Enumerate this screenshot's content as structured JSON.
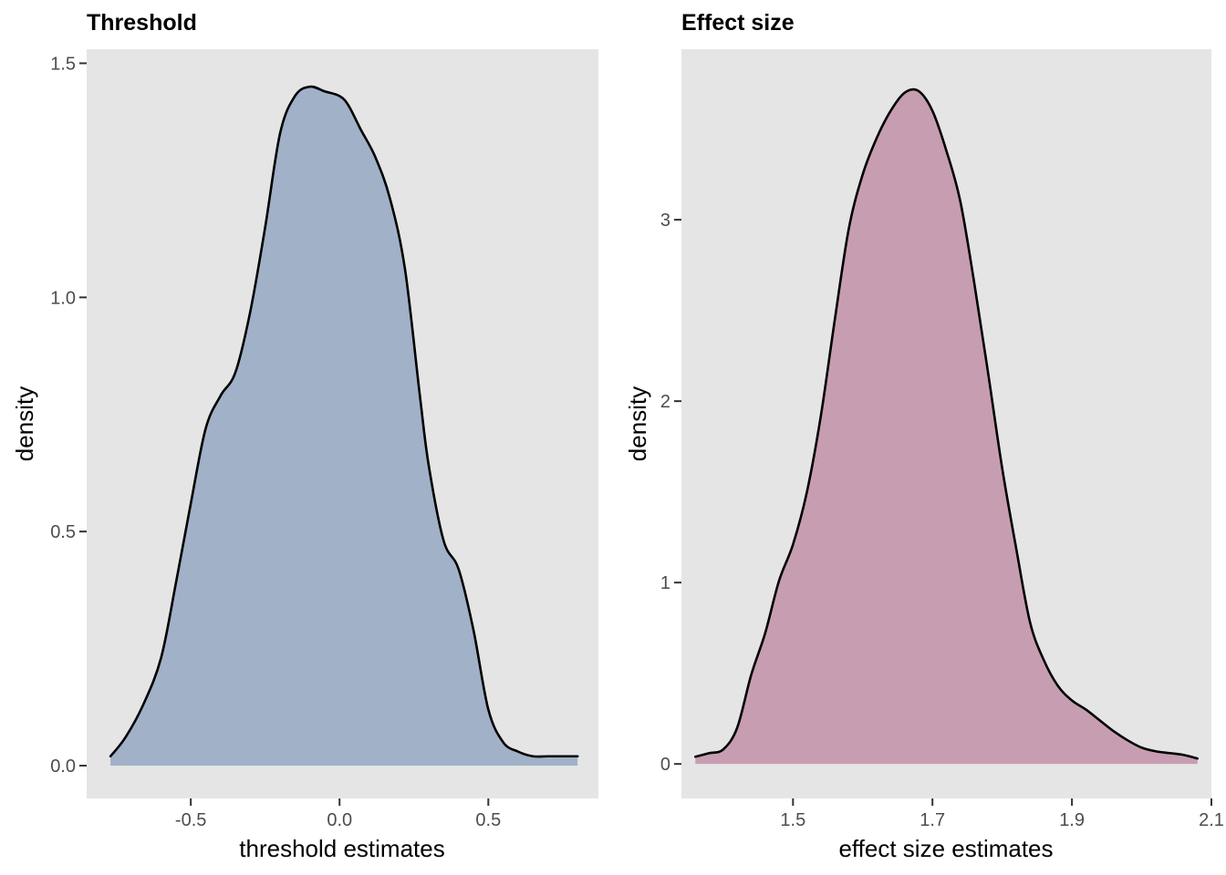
{
  "chart_data": [
    {
      "type": "area",
      "title": "Threshold",
      "xlabel": "threshold estimates",
      "ylabel": "density",
      "xlim": [
        -0.85,
        0.87
      ],
      "ylim": [
        -0.07,
        1.53
      ],
      "xticks": [
        -0.5,
        0.0,
        0.5
      ],
      "xtick_labels": [
        "-0.5",
        "0.0",
        "0.5"
      ],
      "yticks": [
        0.0,
        0.5,
        1.0,
        1.5
      ],
      "ytick_labels": [
        "0.0",
        "0.5",
        "1.0",
        "1.5"
      ],
      "grid": false,
      "fill_color": "#a0b1c8",
      "line_color": "#000000",
      "panel_color": "#e5e5e5",
      "x": [
        -0.77,
        -0.72,
        -0.66,
        -0.6,
        -0.55,
        -0.5,
        -0.45,
        -0.4,
        -0.35,
        -0.3,
        -0.25,
        -0.2,
        -0.15,
        -0.1,
        -0.05,
        0.0,
        0.03,
        0.07,
        0.12,
        0.17,
        0.22,
        0.27,
        0.3,
        0.35,
        0.4,
        0.45,
        0.5,
        0.55,
        0.6,
        0.65,
        0.7,
        0.75,
        0.8
      ],
      "y": [
        0.02,
        0.06,
        0.13,
        0.23,
        0.39,
        0.56,
        0.72,
        0.79,
        0.84,
        0.97,
        1.15,
        1.35,
        1.43,
        1.45,
        1.44,
        1.43,
        1.41,
        1.36,
        1.3,
        1.21,
        1.06,
        0.79,
        0.64,
        0.48,
        0.42,
        0.29,
        0.12,
        0.05,
        0.03,
        0.02,
        0.02,
        0.02,
        0.02
      ]
    },
    {
      "type": "area",
      "title": "Effect size",
      "xlabel": "effect size estimates",
      "ylabel": "density",
      "xlim": [
        1.34,
        2.1
      ],
      "ylim": [
        -0.19,
        3.94
      ],
      "xticks": [
        1.5,
        1.7,
        1.9,
        2.1
      ],
      "xtick_labels": [
        "1.5",
        "1.7",
        "1.9",
        "2.1"
      ],
      "yticks": [
        0,
        1,
        2,
        3
      ],
      "ytick_labels": [
        "0",
        "1",
        "2",
        "3"
      ],
      "grid": false,
      "fill_color": "#c79db1",
      "line_color": "#000000",
      "panel_color": "#e5e5e5",
      "x": [
        1.36,
        1.38,
        1.4,
        1.42,
        1.44,
        1.46,
        1.48,
        1.5,
        1.52,
        1.54,
        1.56,
        1.58,
        1.6,
        1.62,
        1.64,
        1.66,
        1.68,
        1.7,
        1.72,
        1.74,
        1.76,
        1.78,
        1.8,
        1.82,
        1.84,
        1.86,
        1.88,
        1.9,
        1.92,
        1.94,
        1.96,
        1.98,
        2.0,
        2.02,
        2.04,
        2.06,
        2.08
      ],
      "y": [
        0.04,
        0.06,
        0.08,
        0.2,
        0.49,
        0.72,
        1.01,
        1.21,
        1.5,
        1.92,
        2.45,
        2.95,
        3.25,
        3.45,
        3.6,
        3.7,
        3.71,
        3.6,
        3.38,
        3.1,
        2.65,
        2.15,
        1.63,
        1.19,
        0.78,
        0.57,
        0.43,
        0.35,
        0.3,
        0.24,
        0.18,
        0.13,
        0.09,
        0.07,
        0.06,
        0.05,
        0.03
      ]
    }
  ]
}
